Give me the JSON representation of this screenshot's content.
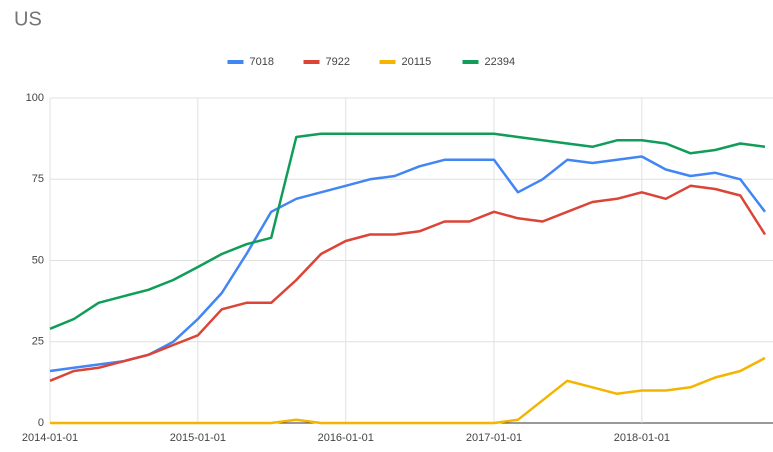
{
  "chart_data": {
    "type": "line",
    "title": "US",
    "x": [
      "2014-01-01",
      "2014-03-01",
      "2014-05-01",
      "2014-07-01",
      "2014-09-01",
      "2014-11-01",
      "2015-01-01",
      "2015-03-01",
      "2015-05-01",
      "2015-07-01",
      "2015-09-01",
      "2015-11-01",
      "2016-01-01",
      "2016-03-01",
      "2016-05-01",
      "2016-07-01",
      "2016-09-01",
      "2016-11-01",
      "2017-01-01",
      "2017-03-01",
      "2017-05-01",
      "2017-07-01",
      "2017-09-01",
      "2017-11-01",
      "2018-01-01",
      "2018-03-01",
      "2018-05-01",
      "2018-07-01",
      "2018-09-01",
      "2018-11-01"
    ],
    "series": [
      {
        "name": "7018",
        "color": "#4285f4",
        "values": [
          16,
          17,
          18,
          19,
          21,
          25,
          32,
          40,
          52,
          65,
          69,
          71,
          73,
          75,
          76,
          79,
          81,
          81,
          81,
          71,
          75,
          81,
          80,
          81,
          82,
          78,
          76,
          77,
          75,
          65
        ]
      },
      {
        "name": "7922",
        "color": "#db4437",
        "values": [
          13,
          16,
          17,
          19,
          21,
          24,
          27,
          35,
          37,
          37,
          44,
          52,
          56,
          58,
          58,
          59,
          62,
          62,
          65,
          63,
          62,
          65,
          68,
          69,
          71,
          69,
          73,
          72,
          70,
          58
        ]
      },
      {
        "name": "20115",
        "color": "#f4b400",
        "values": [
          0,
          0,
          0,
          0,
          0,
          0,
          0,
          0,
          0,
          0,
          1,
          0,
          0,
          0,
          0,
          0,
          0,
          0,
          0,
          1,
          7,
          13,
          11,
          9,
          10,
          10,
          11,
          14,
          16,
          20
        ]
      },
      {
        "name": "22394",
        "color": "#0f9d58",
        "values": [
          29,
          32,
          37,
          39,
          41,
          44,
          48,
          52,
          55,
          57,
          88,
          89,
          89,
          89,
          89,
          89,
          89,
          89,
          89,
          88,
          87,
          86,
          85,
          87,
          87,
          86,
          83,
          84,
          86,
          85
        ]
      }
    ],
    "xlim": [
      "2014-01-01",
      "2018-11-01"
    ],
    "xticks": [
      "2014-01-01",
      "2015-01-01",
      "2016-01-01",
      "2017-01-01",
      "2018-01-01"
    ],
    "ylim": [
      0,
      100
    ],
    "yticks": [
      0,
      25,
      50,
      75,
      100
    ],
    "grid": true,
    "legend": "top"
  }
}
